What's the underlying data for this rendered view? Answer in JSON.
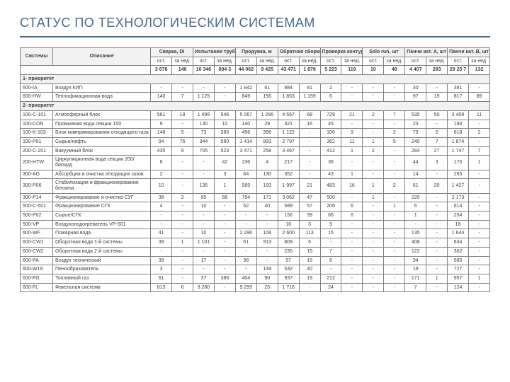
{
  "title": "СТАТУС ПО ТЕХНОЛОГИЧЕСКИМ СИСТЕМАМ",
  "columns": {
    "system": "Системы",
    "desc": "Описание",
    "groups": [
      "Сварка, DI",
      "Испытания трубопр., м",
      "Продувка, м",
      "Обратная сборка, соед.",
      "Проверка контуров, шт",
      "Solo run, шт",
      "Панчи кат. A, шт",
      "Панчи кат. B, шт"
    ],
    "sub_ost": "ост.",
    "sub_ned": "за нед."
  },
  "totals": [
    "3 678",
    "146",
    "16 346",
    "804 3",
    "44 062",
    "9 425",
    "43 471",
    "1 878",
    "5 223",
    "119",
    "10",
    "48",
    "4 407",
    "283",
    "29 25 7",
    "132"
  ],
  "section1": "1- приоритет",
  "section2": "2- приоритет",
  "rows1": [
    {
      "sys": "600-IA",
      "desc": "Воздух КИП",
      "v": [
        "-",
        "-",
        "-",
        "-",
        "1 842",
        "61",
        "884",
        "81",
        "2",
        "-",
        "-",
        "-",
        "30",
        "-",
        "381",
        "-"
      ]
    },
    {
      "sys": "600-HW",
      "desc": "Теплофикационная вода",
      "v": [
        "140",
        "7",
        "1 125",
        "-",
        "849",
        "156",
        "1 853",
        "1 159",
        "6",
        "-",
        "-",
        "-",
        "97",
        "19",
        "817",
        "89"
      ]
    }
  ],
  "rows2": [
    {
      "sys": "100-C-101",
      "desc": "Атмосферный блок",
      "v": [
        "561",
        "18",
        "1 498",
        "546",
        "5 067",
        "1 286",
        "4 557",
        "68",
        "729",
        "21",
        "2",
        "7",
        "535",
        "50",
        "3 408",
        "11"
      ]
    },
    {
      "sys": "100-CON",
      "desc": "Промывная вода секции 100",
      "v": [
        "9",
        "-",
        "130",
        "10",
        "140",
        "29",
        "321",
        "16",
        "45",
        "-",
        "-",
        "-",
        "23",
        "-",
        "190",
        "-"
      ]
    },
    {
      "sys": "100-K-103",
      "desc": "Блок компримирования отходящего газа",
      "v": [
        "148",
        "5",
        "73",
        "365",
        "456",
        "398",
        "1 122",
        "-",
        "106",
        "9",
        "-",
        "2",
        "79",
        "5",
        "618",
        "2"
      ]
    },
    {
      "sys": "100-P01",
      "desc": "Сырье/нефть",
      "v": [
        "94",
        "76",
        "344",
        "580",
        "1 414",
        "893",
        "2 797",
        "-",
        "362",
        "11",
        "1",
        "5",
        "240",
        "7",
        "1 874",
        "-"
      ]
    },
    {
      "sys": "200-C-201",
      "desc": "Вакуумный блок",
      "v": [
        "435",
        "8",
        "705",
        "523",
        "3 471",
        "258",
        "3 467",
        "-",
        "412",
        "1",
        "2",
        "-",
        "284",
        "27",
        "1 747",
        "7"
      ]
    },
    {
      "sys": "200-HTW",
      "desc": "Циркуляционная вода секции 200/биоцид",
      "v": [
        "6",
        "-",
        "-",
        "42",
        "236",
        "4",
        "217",
        "-",
        "36",
        "-",
        "-",
        "-",
        "44",
        "3",
        "170",
        "1"
      ]
    },
    {
      "sys": "300-AG",
      "desc": "Абсорбция и очистка отходящих газов",
      "v": [
        "2",
        "-",
        "-",
        "3",
        "64",
        "130",
        "352",
        "-",
        "43",
        "1",
        "-",
        "-",
        "14",
        "-",
        "265",
        "-"
      ]
    },
    {
      "sys": "300-P06",
      "desc": "Стабилизация и фракционирование бензина",
      "v": [
        "10",
        "-",
        "135",
        "1",
        "589",
        "193",
        "1 997",
        "21",
        "483",
        "16",
        "1",
        "2",
        "61",
        "20",
        "1 427",
        "-"
      ]
    },
    {
      "sys": "300-P14",
      "desc": "Фракционирование и очистка СУГ",
      "v": [
        "38",
        "2",
        "95",
        "68",
        "754",
        "171",
        "3 062",
        "47",
        "500",
        "-",
        "1",
        "-",
        "220",
        "-",
        "2 173",
        "-"
      ]
    },
    {
      "sys": "500-C-501",
      "desc": "Фракционирование СГК",
      "v": [
        "4",
        "-",
        "10",
        "-",
        "52",
        "40",
        "589",
        "57",
        "206",
        "6",
        "-",
        "1",
        "6",
        "-",
        "614",
        "-"
      ]
    },
    {
      "sys": "500-P02",
      "desc": "Сырье/СГК",
      "v": [
        "-",
        "-",
        "-",
        "-",
        "-",
        "-",
        "156",
        "39",
        "66",
        "6",
        "-",
        "-",
        "1",
        "-",
        "254",
        "-"
      ]
    },
    {
      "sys": "500-VP",
      "desc": "Воздухоподогреватель VP-501",
      "v": [
        "-",
        "-",
        "-",
        "-",
        "-",
        "-",
        "16",
        "3",
        "9",
        "-",
        "-",
        "-",
        "-",
        "-",
        "18",
        "-"
      ]
    },
    {
      "sys": "600-WF",
      "desc": "Пожарная вода",
      "v": [
        "41",
        "-",
        "10",
        "-",
        "2 296",
        "108",
        "2 600",
        "113",
        "15",
        "-",
        "-",
        "-",
        "135",
        "-",
        "1 644",
        "-"
      ]
    },
    {
      "sys": "600-CW1",
      "desc": "Оборотная вода 1-й системы",
      "v": [
        "39",
        "1",
        "1 101",
        "-",
        "51",
        "913",
        "809",
        "6",
        "-",
        "-",
        "-",
        "-",
        "408",
        "-",
        "634",
        "-"
      ]
    },
    {
      "sys": "600-CW2",
      "desc": "Оборотная вода 2-й системы",
      "v": [
        "-",
        "-",
        "-",
        "-",
        "-",
        "-",
        "235",
        "15",
        "7",
        "-",
        "-",
        "-",
        "122",
        "-",
        "302",
        "-"
      ]
    },
    {
      "sys": "600-PA",
      "desc": "Воздух технический",
      "v": [
        "39",
        "-",
        "17",
        "-",
        "36",
        "-",
        "57",
        "15",
        "8",
        "-",
        "-",
        "-",
        "94",
        "-",
        "585",
        "-"
      ]
    },
    {
      "sys": "600-W19",
      "desc": "Пенообразователь",
      "v": [
        "3",
        "-",
        "-",
        "-",
        "-",
        "149",
        "532",
        "40",
        "-",
        "-",
        "-",
        "-",
        "19",
        "-",
        "727",
        "-"
      ]
    },
    {
      "sys": "600-FG",
      "desc": "Топливный газ",
      "v": [
        "61",
        "-",
        "37",
        "386",
        "404",
        "90",
        "937",
        "19",
        "212",
        "-",
        "-",
        "-",
        "171",
        "1",
        "957",
        "1"
      ]
    },
    {
      "sys": "600-FL",
      "desc": "Факельная система",
      "v": [
        "813",
        "6",
        "9 280",
        "-",
        "9 299",
        "25",
        "1 716",
        "-",
        "24",
        "-",
        "-",
        "-",
        "7",
        "-",
        "124",
        "-"
      ]
    }
  ]
}
